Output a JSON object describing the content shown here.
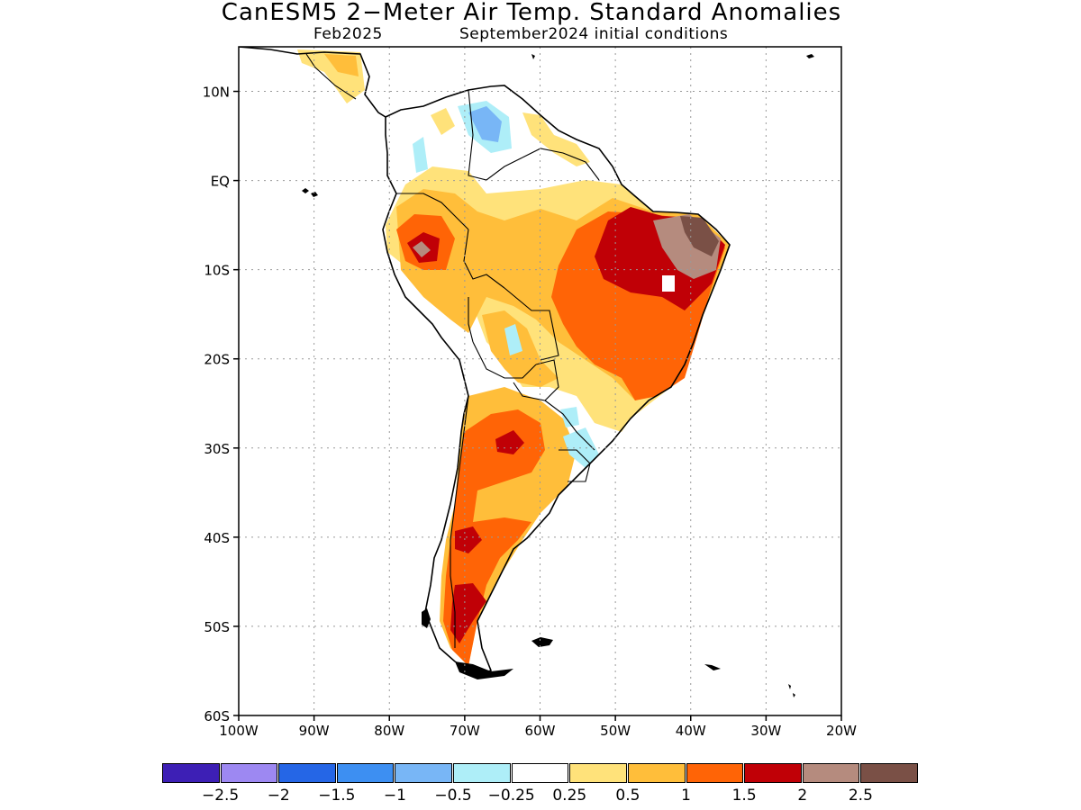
{
  "title": "CanESM5 2−Meter Air Temp. Standard Anomalies",
  "subtitle_left": "Feb2025",
  "subtitle_right": "September2024 initial conditions",
  "map": {
    "lon_range": [
      -100,
      -20
    ],
    "lat_range": [
      -60,
      15
    ],
    "lat_ticks": [
      {
        "value": 10,
        "label": "10N"
      },
      {
        "value": 0,
        "label": "EQ"
      },
      {
        "value": -10,
        "label": "10S"
      },
      {
        "value": -20,
        "label": "20S"
      },
      {
        "value": -30,
        "label": "30S"
      },
      {
        "value": -40,
        "label": "40S"
      },
      {
        "value": -50,
        "label": "50S"
      },
      {
        "value": -60,
        "label": "60S"
      }
    ],
    "lon_ticks": [
      {
        "value": -100,
        "label": "100W"
      },
      {
        "value": -90,
        "label": "90W"
      },
      {
        "value": -80,
        "label": "80W"
      },
      {
        "value": -70,
        "label": "70W"
      },
      {
        "value": -60,
        "label": "60W"
      },
      {
        "value": -50,
        "label": "50W"
      },
      {
        "value": -40,
        "label": "40W"
      },
      {
        "value": -30,
        "label": "30W"
      },
      {
        "value": -20,
        "label": "20W"
      }
    ],
    "grid": true
  },
  "colorbar": {
    "colors": [
      "#3d1fb5",
      "#9d88f2",
      "#2566e6",
      "#3d8ff2",
      "#78b6f6",
      "#aeeef8",
      "#ffffff",
      "#ffe27a",
      "#ffbe3a",
      "#ff6406",
      "#c00006",
      "#b58b7e",
      "#7a5046"
    ],
    "labels": [
      "−2.5",
      "−2",
      "−1.5",
      "−1",
      "−0.5",
      "−0.25",
      "0.25",
      "0.5",
      "1",
      "1.5",
      "2",
      "2.5"
    ]
  }
}
